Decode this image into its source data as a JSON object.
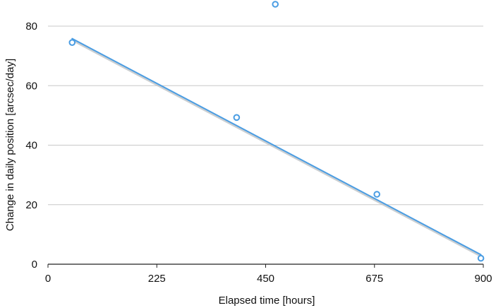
{
  "chart_data": {
    "type": "scatter",
    "title": "",
    "xlabel": "Elapsed time [hours]",
    "ylabel": "Change in daily position [arcsec/day]",
    "xlim": [
      0,
      900
    ],
    "ylim": [
      0,
      80
    ],
    "x_ticks": [
      0,
      225,
      450,
      675,
      900
    ],
    "y_ticks": [
      0,
      20,
      40,
      60,
      80
    ],
    "grid": "horizontal",
    "legend": "none",
    "series": [
      {
        "points": [
          {
            "x": 50,
            "y": 74.5
          },
          {
            "x": 390,
            "y": 49.3
          },
          {
            "x": 470,
            "y": 87.5
          },
          {
            "x": 680,
            "y": 23.5
          },
          {
            "x": 895,
            "y": 2.0
          }
        ],
        "color": "#4a9de3",
        "marker": "open-circle"
      }
    ],
    "trendline": {
      "type": "linear",
      "from": {
        "x": 50,
        "y": 75.8
      },
      "to": {
        "x": 895,
        "y": 3.2
      },
      "color": "#4a9de3",
      "shadow_color": "#bfc4c8"
    },
    "colors": {
      "grid": "#c8c8c8",
      "axis": "#222222",
      "text": "#111111"
    }
  }
}
